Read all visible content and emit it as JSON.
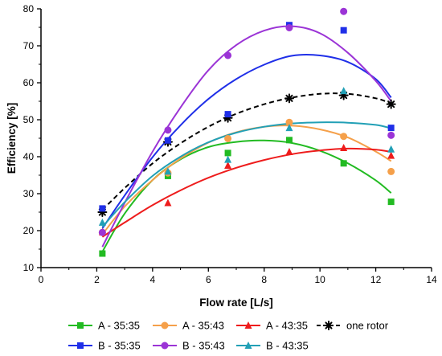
{
  "chart_data": {
    "type": "scatter",
    "xlabel": "Flow rate [L/s]",
    "ylabel": "Efficiency [%]",
    "xlim": [
      0,
      14
    ],
    "ylim": [
      10,
      80
    ],
    "x_ticks": [
      "0",
      "2",
      "4",
      "6",
      "8",
      "10",
      "12",
      "14"
    ],
    "y_ticks": [
      "10",
      "20",
      "30",
      "40",
      "50",
      "60",
      "70",
      "80"
    ],
    "grid": false,
    "legend_position": "bottom",
    "series": [
      {
        "name": "A - 35:35",
        "color": "#22bb22",
        "marker": "square",
        "line_style": "solid",
        "points": [
          [
            2.2,
            13.8
          ],
          [
            4.55,
            34.8
          ],
          [
            6.7,
            41.0
          ],
          [
            8.9,
            44.5
          ],
          [
            10.85,
            38.2
          ],
          [
            12.55,
            27.8
          ]
        ],
        "fit": [
          [
            2.2,
            14.3
          ],
          [
            3.0,
            24.6
          ],
          [
            4.0,
            33.7
          ],
          [
            5.0,
            39.3
          ],
          [
            6.0,
            42.6
          ],
          [
            7.0,
            44.0
          ],
          [
            8.0,
            44.4
          ],
          [
            9.0,
            43.7
          ],
          [
            10.0,
            41.6
          ],
          [
            11.0,
            38.2
          ],
          [
            12.0,
            33.6
          ],
          [
            12.55,
            30.2
          ]
        ]
      },
      {
        "name": "A - 35:43",
        "color": "#f5a04a",
        "marker": "circle",
        "line_style": "solid",
        "points": [
          [
            2.2,
            19.5
          ],
          [
            4.55,
            35.6
          ],
          [
            6.7,
            44.9
          ],
          [
            8.9,
            49.3
          ],
          [
            10.85,
            45.5
          ],
          [
            12.55,
            36.0
          ]
        ],
        "fit": [
          [
            2.2,
            19.0
          ],
          [
            3.0,
            26.5
          ],
          [
            4.0,
            33.7
          ],
          [
            5.0,
            39.5
          ],
          [
            6.0,
            43.8
          ],
          [
            7.0,
            46.6
          ],
          [
            8.0,
            48.1
          ],
          [
            9.0,
            48.4
          ],
          [
            10.0,
            47.4
          ],
          [
            11.0,
            45.2
          ],
          [
            12.0,
            41.4
          ],
          [
            12.55,
            38.8
          ]
        ]
      },
      {
        "name": "A - 43:35",
        "color": "#ee1c1c",
        "marker": "triangle",
        "line_style": "solid",
        "points": [
          [
            2.2,
            19.6
          ],
          [
            4.55,
            27.5
          ],
          [
            6.7,
            37.6
          ],
          [
            8.9,
            41.3
          ],
          [
            10.85,
            42.4
          ],
          [
            12.55,
            40.3
          ]
        ],
        "fit": [
          [
            2.2,
            18.3
          ],
          [
            3.0,
            22.2
          ],
          [
            4.0,
            26.9
          ],
          [
            5.0,
            30.9
          ],
          [
            6.0,
            34.3
          ],
          [
            7.0,
            37.0
          ],
          [
            8.0,
            39.1
          ],
          [
            9.0,
            40.7
          ],
          [
            10.0,
            41.7
          ],
          [
            11.0,
            42.2
          ],
          [
            12.0,
            41.9
          ],
          [
            12.55,
            41.3
          ]
        ]
      },
      {
        "name": "one rotor",
        "color": "#000000",
        "marker": "asterisk",
        "line_style": "dashed",
        "points": [
          [
            2.2,
            25.0
          ],
          [
            4.55,
            44.0
          ],
          [
            6.7,
            50.5
          ],
          [
            8.9,
            55.8
          ],
          [
            10.85,
            56.6
          ],
          [
            12.55,
            54.2
          ]
        ],
        "fit": [
          [
            2.2,
            25.6
          ],
          [
            3.0,
            31.5
          ],
          [
            4.0,
            38.2
          ],
          [
            5.0,
            43.6
          ],
          [
            6.0,
            48.1
          ],
          [
            7.0,
            51.6
          ],
          [
            8.0,
            54.2
          ],
          [
            9.0,
            56.0
          ],
          [
            10.0,
            57.0
          ],
          [
            11.0,
            57.0
          ],
          [
            12.0,
            55.8
          ],
          [
            12.55,
            54.4
          ]
        ]
      },
      {
        "name": "B - 35:35",
        "color": "#1f2fe8",
        "marker": "square",
        "line_style": "solid",
        "points": [
          [
            2.2,
            26.0
          ],
          [
            4.55,
            44.4
          ],
          [
            6.7,
            51.5
          ],
          [
            8.9,
            75.6
          ],
          [
            10.85,
            74.2
          ],
          [
            12.55,
            47.8
          ]
        ],
        "fit": [
          [
            2.2,
            20.6
          ],
          [
            3.0,
            29.5
          ],
          [
            4.0,
            39.9
          ],
          [
            5.0,
            48.5
          ],
          [
            6.0,
            55.6
          ],
          [
            7.0,
            61.0
          ],
          [
            8.0,
            64.9
          ],
          [
            9.0,
            67.3
          ],
          [
            10.0,
            67.4
          ],
          [
            11.0,
            65.6
          ],
          [
            12.0,
            61.0
          ],
          [
            12.55,
            56.0
          ]
        ]
      },
      {
        "name": "B - 35:43",
        "color": "#9b34d6",
        "marker": "circle",
        "line_style": "solid",
        "points": [
          [
            2.2,
            19.5
          ],
          [
            4.55,
            47.2
          ],
          [
            6.7,
            67.4
          ],
          [
            8.9,
            74.9
          ],
          [
            10.85,
            79.3
          ],
          [
            12.55,
            45.8
          ]
        ],
        "fit": [
          [
            2.2,
            15.6
          ],
          [
            3.0,
            27.5
          ],
          [
            4.0,
            41.4
          ],
          [
            5.0,
            53.3
          ],
          [
            6.0,
            63.4
          ],
          [
            7.0,
            70.2
          ],
          [
            8.0,
            74.1
          ],
          [
            9.0,
            75.3
          ],
          [
            10.0,
            73.4
          ],
          [
            11.0,
            68.1
          ],
          [
            12.0,
            60.5
          ],
          [
            12.55,
            55.0
          ]
        ]
      },
      {
        "name": "B - 43:35",
        "color": "#22a0b6",
        "marker": "triangle",
        "line_style": "solid",
        "points": [
          [
            2.2,
            22.2
          ],
          [
            4.55,
            36.0
          ],
          [
            6.7,
            39.2
          ],
          [
            8.9,
            47.8
          ],
          [
            10.85,
            57.8
          ],
          [
            12.55,
            42.0
          ]
        ],
        "fit": [
          [
            2.2,
            21.0
          ],
          [
            3.0,
            27.7
          ],
          [
            4.0,
            34.8
          ],
          [
            5.0,
            40.0
          ],
          [
            6.0,
            43.9
          ],
          [
            7.0,
            46.5
          ],
          [
            8.0,
            48.1
          ],
          [
            9.0,
            49.0
          ],
          [
            10.0,
            49.3
          ],
          [
            11.0,
            49.2
          ],
          [
            12.0,
            48.6
          ],
          [
            12.55,
            47.7
          ]
        ]
      }
    ]
  }
}
